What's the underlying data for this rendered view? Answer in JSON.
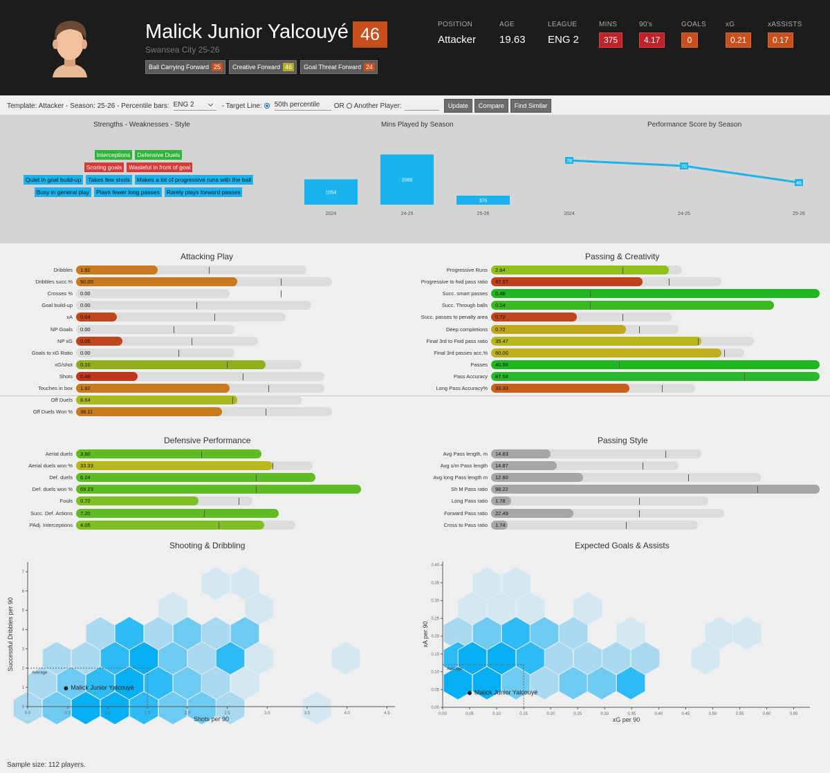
{
  "header": {
    "player_name": "Malick Junior Yalcouyé",
    "score": "46",
    "club": "Swansea City 25-26",
    "tags": [
      {
        "label": "Ball Carrying Forward",
        "value": "25",
        "color": "#c8501c"
      },
      {
        "label": "Creative Forward",
        "value": "46",
        "color": "#b5b020"
      },
      {
        "label": "Goal Threat Forward",
        "value": "24",
        "color": "#c8501c"
      }
    ],
    "stats": [
      {
        "label": "POSITION",
        "value": "Attacker",
        "boxed": false
      },
      {
        "label": "AGE",
        "value": "19.63",
        "boxed": false
      },
      {
        "label": "LEAGUE",
        "value": "ENG 2",
        "boxed": false
      },
      {
        "label": "MINS",
        "value": "375",
        "boxed": true,
        "color": "red"
      },
      {
        "label": "90's",
        "value": "4.17",
        "boxed": true,
        "color": "red"
      },
      {
        "label": "GOALS",
        "value": "0",
        "boxed": true,
        "color": "orange"
      },
      {
        "label": "xG",
        "value": "0.21",
        "boxed": true,
        "color": "orange"
      },
      {
        "label": "xASSISTS",
        "value": "0.17",
        "boxed": true,
        "color": "orange"
      }
    ]
  },
  "toolbar": {
    "template_text": "Template: Attacker - Season: 25-26 - Percentile bars:",
    "league_value": "ENG 2",
    "target_label": "- Target Line:",
    "percentile_value": "50th percentile",
    "or_label": "OR",
    "another_label": "Another Player:",
    "update": "Update",
    "compare": "Compare",
    "find_similar": "Find Similar"
  },
  "top_panel": {
    "sw_title": "Strengths - Weaknesses - Style",
    "strengths": [
      "Interceptions",
      "Defensive Duels"
    ],
    "weaknesses": [
      "Scoring goals",
      "Wasteful in front of goal"
    ],
    "style_rows": [
      [
        "Quiet in goal build-up",
        "Takes few shots",
        "Makes a lot of progressive runs with the ball"
      ],
      [
        "Busy in general play",
        "Plays fewer long passes",
        "Rarely plays forward passes"
      ]
    ],
    "mins_title": "Mins Played by Season",
    "perf_title": "Performance Score by Season"
  },
  "chart_data": [
    {
      "type": "bar",
      "title": "Mins Played by Season",
      "categories": [
        "2024",
        "24-25",
        "25-26"
      ],
      "values": [
        1054,
        2088,
        375
      ]
    },
    {
      "type": "line",
      "title": "Performance Score by Season",
      "categories": [
        "2024",
        "24-25",
        "25-26"
      ],
      "values": [
        78,
        70,
        46
      ]
    },
    {
      "type": "scatter",
      "title": "Shooting & Dribbling",
      "xlabel": "Shots per 90",
      "ylabel": "Successful Dribbles per 90",
      "xticks": [
        "0.0",
        "0.5",
        "1.0",
        "1.5",
        "2.0",
        "2.5",
        "3.0",
        "3.5",
        "4.0",
        "4.5"
      ],
      "yticks": [
        "0",
        "1",
        "2",
        "3",
        "4",
        "5",
        "6",
        "7"
      ],
      "xlim": [
        0,
        4.6
      ],
      "ylim": [
        0,
        7.5
      ],
      "average_label": "Average",
      "average": {
        "x": 1.5,
        "y": 2.0
      },
      "player": {
        "name": "Malick Junior Yalcouyé",
        "x": 0.48,
        "y": 0.95
      }
    },
    {
      "type": "scatter",
      "title": "Expected Goals & Assists",
      "xlabel": "xG per 90",
      "ylabel": "xA per 90",
      "xticks": [
        "0.00",
        "0.05",
        "0.10",
        "0.15",
        "0.20",
        "0.25",
        "0.30",
        "0.35",
        "0.40",
        "0.45",
        "0.50",
        "0.55",
        "0.60",
        "0.65"
      ],
      "yticks": [
        "0.00",
        "0.05",
        "0.10",
        "0.15",
        "0.20",
        "0.25",
        "0.30",
        "0.35",
        "0.40"
      ],
      "xlim": [
        0,
        0.68
      ],
      "ylim": [
        0,
        0.41
      ],
      "average_label": "Average",
      "average": {
        "x": 0.15,
        "y": 0.12
      },
      "player": {
        "name": "Malick Junior Yalcouyé",
        "x": 0.05,
        "y": 0.04
      }
    }
  ],
  "sections": {
    "attacking": {
      "title": "Attacking Play",
      "rows": [
        {
          "label": "Dribbles",
          "value": "1.92",
          "fill": 0.32,
          "track": 0.9,
          "mark": 0.52,
          "color": "#c87a1c"
        },
        {
          "label": "Dribbles succ.%",
          "value": "50.00",
          "fill": 0.63,
          "track": 1.0,
          "mark": 0.8,
          "color": "#c87a1c"
        },
        {
          "label": "Crosses %",
          "value": "0.00",
          "fill": 0.0,
          "track": 0.6,
          "mark": 0.8,
          "color": "#c87a1c"
        },
        {
          "label": "Goal build-up",
          "value": "0.00",
          "fill": 0.0,
          "track": 0.92,
          "mark": 0.47,
          "color": "#c87a1c"
        },
        {
          "label": "xA",
          "value": "0.04",
          "fill": 0.16,
          "track": 0.82,
          "mark": 0.54,
          "color": "#c0441c"
        },
        {
          "label": "NP Goals",
          "value": "0.00",
          "fill": 0.0,
          "track": 0.62,
          "mark": 0.38,
          "color": "#c0441c"
        },
        {
          "label": "NP xG",
          "value": "0.05",
          "fill": 0.18,
          "track": 0.71,
          "mark": 0.45,
          "color": "#c0441c"
        },
        {
          "label": "Goals to xG Ratio",
          "value": "0.00",
          "fill": 0.0,
          "track": 0.62,
          "mark": 0.4,
          "color": "#c0441c"
        },
        {
          "label": "xG/shot",
          "value": "0.10",
          "fill": 0.74,
          "track": 0.88,
          "mark": 0.59,
          "color": "#8fb01c"
        },
        {
          "label": "Shots",
          "value": "0.48",
          "fill": 0.24,
          "track": 0.97,
          "mark": 0.65,
          "color": "#c0361c"
        },
        {
          "label": "Touches in box",
          "value": "1.92",
          "fill": 0.6,
          "track": 0.97,
          "mark": 0.75,
          "color": "#c87a1c"
        },
        {
          "label": "Off Duels",
          "value": "8.64",
          "fill": 0.63,
          "track": 0.88,
          "mark": 0.61,
          "color": "#aab81c"
        },
        {
          "label": "Off Duels Won %",
          "value": "36.11",
          "fill": 0.57,
          "track": 1.0,
          "mark": 0.74,
          "color": "#c87a1c"
        }
      ]
    },
    "passing": {
      "title": "Passing & Creativity",
      "rows": [
        {
          "label": "Progressive Runs",
          "value": "2.64",
          "fill": 0.54,
          "track": 0.58,
          "mark": 0.4,
          "color": "#8fc01c"
        },
        {
          "label": "Progressive to fwd pass ratio",
          "value": "47.37",
          "fill": 0.46,
          "track": 0.7,
          "mark": 0.54,
          "color": "#c0401c"
        },
        {
          "label": "Succ. smart passes",
          "value": "0.48",
          "fill": 1.0,
          "track": 1.0,
          "mark": 0.3,
          "color": "#22b522"
        },
        {
          "label": "Succ. Through balls",
          "value": "0.24",
          "fill": 0.86,
          "track": 0.86,
          "mark": 0.3,
          "color": "#3cba22"
        },
        {
          "label": "Succ. passes to penalty area",
          "value": "0.72",
          "fill": 0.26,
          "track": 0.55,
          "mark": 0.4,
          "color": "#c0441c"
        },
        {
          "label": "Deep completions",
          "value": "0.72",
          "fill": 0.41,
          "track": 0.57,
          "mark": 0.45,
          "color": "#c0a81c"
        },
        {
          "label": "Final 3rd to Fwd pass ratio",
          "value": "39.47",
          "fill": 0.64,
          "track": 0.8,
          "mark": 0.63,
          "color": "#b8b81c"
        },
        {
          "label": "Final 3rd passes acc.%",
          "value": "60.00",
          "fill": 0.7,
          "track": 0.77,
          "mark": 0.71,
          "color": "#c0b01c"
        },
        {
          "label": "Passes",
          "value": "40.56",
          "fill": 1.0,
          "track": 1.0,
          "mark": 0.39,
          "color": "#22b522"
        },
        {
          "label": "Pass Accuracy",
          "value": "87.58",
          "fill": 1.0,
          "track": 1.0,
          "mark": 0.77,
          "color": "#2cb82c"
        },
        {
          "label": "Long Pass Accuracy%",
          "value": "33.33",
          "fill": 0.42,
          "track": 0.62,
          "mark": 0.52,
          "color": "#c8601c"
        }
      ]
    },
    "defensive": {
      "title": "Defensive Performance",
      "rows": [
        {
          "label": "Aerial duels",
          "value": "3.60",
          "fill": 0.65,
          "track": 0.65,
          "mark": 0.44,
          "color": "#5fbc22"
        },
        {
          "label": "Aerial duels won %",
          "value": "33.33",
          "fill": 0.69,
          "track": 0.83,
          "mark": 0.69,
          "color": "#b8b81c"
        },
        {
          "label": "Def. duels",
          "value": "6.24",
          "fill": 0.84,
          "track": 0.84,
          "mark": 0.63,
          "color": "#5fbc22"
        },
        {
          "label": "Def. duels won %",
          "value": "69.23",
          "fill": 1.0,
          "track": 1.0,
          "mark": 0.63,
          "color": "#5fbc22"
        },
        {
          "label": "Fouls",
          "value": "0.72",
          "fill": 0.43,
          "track": 0.62,
          "mark": 0.57,
          "color": "#7ec022"
        },
        {
          "label": "Succ. Def. Actions",
          "value": "7.20",
          "fill": 0.71,
          "track": 0.71,
          "mark": 0.45,
          "color": "#5fbc22"
        },
        {
          "label": "PAdj. Interceptions",
          "value": "4.05",
          "fill": 0.66,
          "track": 0.77,
          "mark": 0.5,
          "color": "#7ec022"
        }
      ]
    },
    "style": {
      "title": "Passing Style",
      "rows": [
        {
          "label": "Avg Pass length, m",
          "value": "14.83",
          "fill": 0.18,
          "track": 0.64,
          "mark": 0.53,
          "color": "#a6a6a6"
        },
        {
          "label": "Avg s/m Pass length",
          "value": "14.87",
          "fill": 0.2,
          "track": 0.57,
          "mark": 0.46,
          "color": "#a6a6a6"
        },
        {
          "label": "Avg long Pass length m",
          "value": "12.60",
          "fill": 0.28,
          "track": 0.82,
          "mark": 0.6,
          "color": "#a6a6a6"
        },
        {
          "label": "Sh M Pass ratio",
          "value": "98.22",
          "fill": 1.0,
          "track": 1.0,
          "mark": 0.81,
          "color": "#a6a6a6"
        },
        {
          "label": "Long Pass ratio",
          "value": "1.78",
          "fill": 0.06,
          "track": 0.66,
          "mark": 0.45,
          "color": "#a6a6a6"
        },
        {
          "label": "Forward Pass ratio",
          "value": "22.49",
          "fill": 0.25,
          "track": 0.71,
          "mark": 0.45,
          "color": "#a6a6a6"
        },
        {
          "label": "Cross to Pass ratio",
          "value": "1.74",
          "fill": 0.05,
          "track": 0.63,
          "mark": 0.41,
          "color": "#a6a6a6"
        }
      ]
    }
  },
  "footer": {
    "sample": "Sample size: 112 players."
  }
}
